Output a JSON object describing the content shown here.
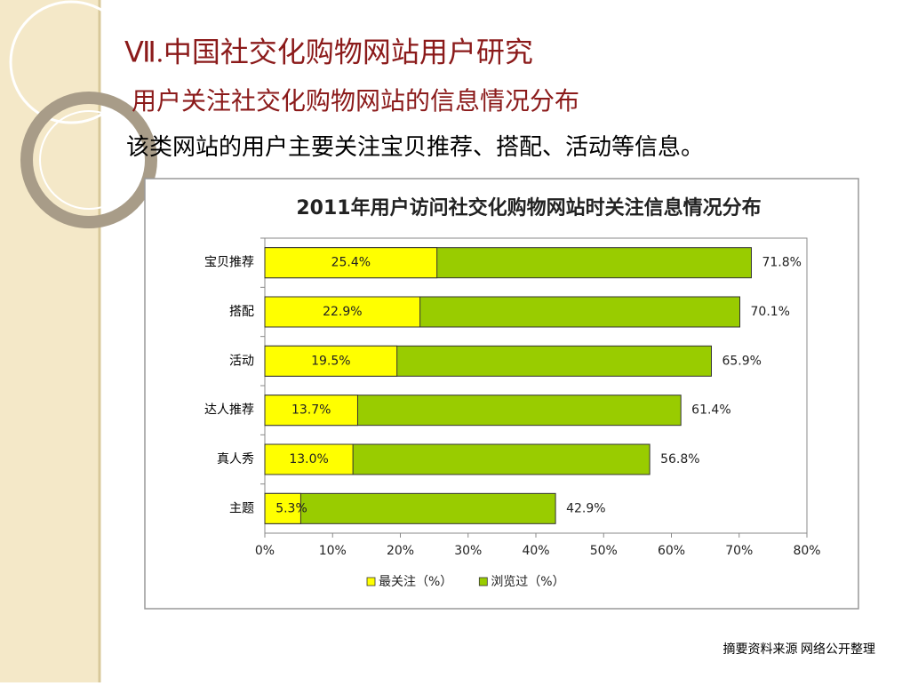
{
  "slide": {
    "title": "Ⅶ.中国社交化购物网站用户研究",
    "subtitle": "用户关注社交化购物网站的信息情况分布",
    "body": "该类网站的用户主要关注宝贝推荐、搭配、活动等信息。",
    "footnote": "摘要资料来源 网络公开整理"
  },
  "chart_data": {
    "type": "bar",
    "orientation": "horizontal",
    "title": "2011年用户访问社交化购物网站时关注信息情况分布",
    "categories": [
      "宝贝推荐",
      "搭配",
      "活动",
      "达人推荐",
      "真人秀",
      "主题"
    ],
    "series": [
      {
        "name": "最关注（%）",
        "color": "#ffff00",
        "values": [
          25.4,
          22.9,
          19.5,
          13.7,
          13.0,
          5.3
        ],
        "value_labels": [
          "25.4%",
          "22.9%",
          "19.5%",
          "13.7%",
          "13.0%",
          "5.3%"
        ]
      },
      {
        "name": "浏览过（%）",
        "color": "#99cc00",
        "values": [
          71.8,
          70.1,
          65.9,
          61.4,
          56.8,
          42.9
        ],
        "value_labels": [
          "71.8%",
          "70.1%",
          "65.9%",
          "61.4%",
          "56.8%",
          "42.9%"
        ]
      }
    ],
    "xlim": [
      0,
      80
    ],
    "xticks": [
      {
        "value": 0,
        "label": "0%"
      },
      {
        "value": 10,
        "label": "10%"
      },
      {
        "value": 20,
        "label": "20%"
      },
      {
        "value": 30,
        "label": "30%"
      },
      {
        "value": 40,
        "label": "40%"
      },
      {
        "value": 50,
        "label": "50%"
      },
      {
        "value": 60,
        "label": "60%"
      },
      {
        "value": 70,
        "label": "70%"
      },
      {
        "value": 80,
        "label": "80%"
      }
    ],
    "legend": "bottom"
  }
}
